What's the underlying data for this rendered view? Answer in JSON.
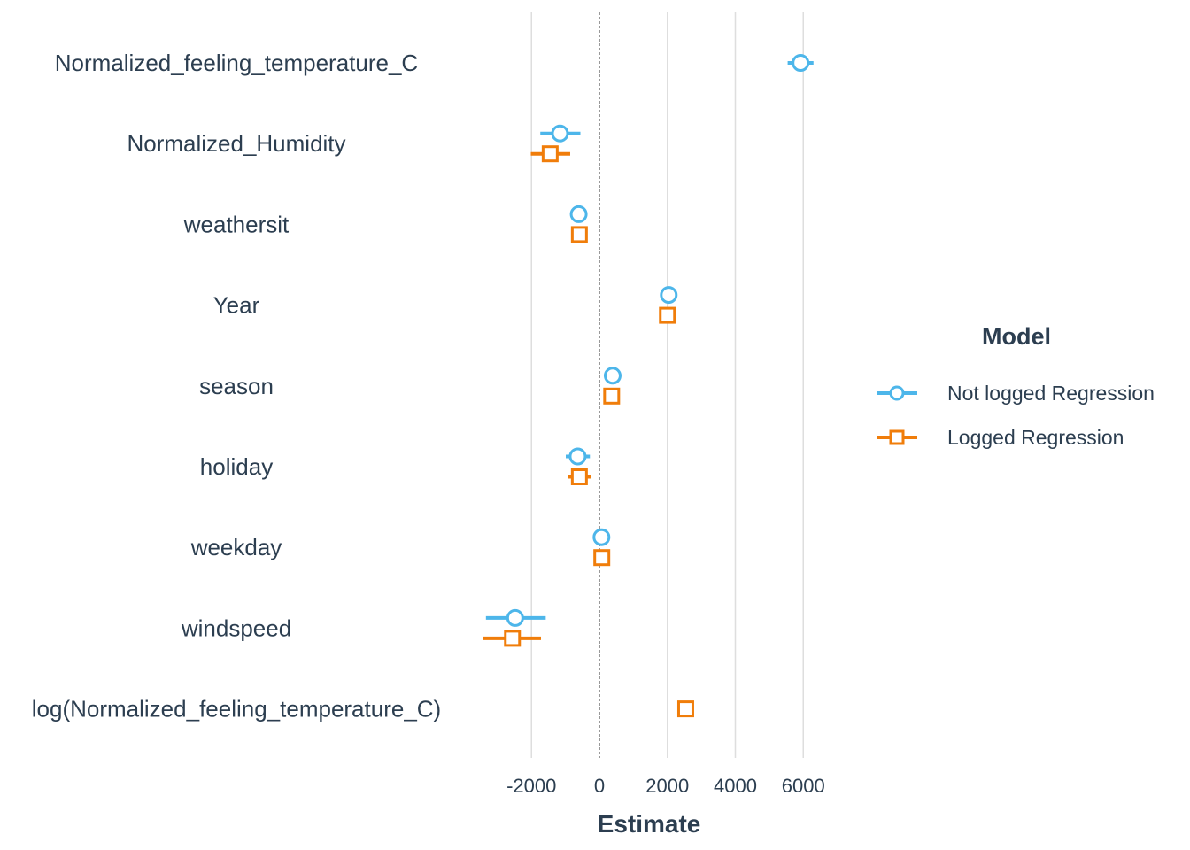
{
  "chart_data": {
    "type": "scatter",
    "subtype": "coefficient-dot-whisker",
    "xlabel": "Estimate",
    "x_ticks": [
      -2000,
      0,
      2000,
      4000,
      6000
    ],
    "x_tick_labels": [
      "-2000",
      "0",
      "2000",
      "4000",
      "6000"
    ],
    "xlim": [
      -3500,
      6800
    ],
    "grid": "vertical major gridlines",
    "reference_line": 0,
    "terms": [
      "Normalized_feeling_temperature_C",
      "Normalized_Humidity",
      "weathersit",
      "Year",
      "season",
      "holiday",
      "weekday",
      "windspeed",
      "log(Normalized_feeling_temperature_C)"
    ],
    "legend": {
      "title": "Model",
      "position": "right"
    },
    "series": [
      {
        "name": "Not logged Regression",
        "color": "#4db6ea",
        "marker": "circle",
        "points": [
          {
            "term": "Normalized_feeling_temperature_C",
            "estimate": 5920,
            "low": 5540,
            "high": 6300
          },
          {
            "term": "Normalized_Humidity",
            "estimate": -1160,
            "low": -1740,
            "high": -560
          },
          {
            "term": "weathersit",
            "estimate": -610,
            "low": -680,
            "high": -540
          },
          {
            "term": "Year",
            "estimate": 2040,
            "low": 1990,
            "high": 2090
          },
          {
            "term": "season",
            "estimate": 390,
            "low": 330,
            "high": 450
          },
          {
            "term": "holiday",
            "estimate": -640,
            "low": -990,
            "high": -280
          },
          {
            "term": "weekday",
            "estimate": 60,
            "low": 0,
            "high": 120
          },
          {
            "term": "windspeed",
            "estimate": -2480,
            "low": -3340,
            "high": -1580
          }
        ]
      },
      {
        "name": "Logged Regression",
        "color": "#f07d0a",
        "marker": "square",
        "points": [
          {
            "term": "Normalized_Humidity",
            "estimate": -1450,
            "low": -2020,
            "high": -860
          },
          {
            "term": "weathersit",
            "estimate": -590,
            "low": -660,
            "high": -520
          },
          {
            "term": "Year",
            "estimate": 2000,
            "low": 1950,
            "high": 2050
          },
          {
            "term": "season",
            "estimate": 360,
            "low": 300,
            "high": 420
          },
          {
            "term": "holiday",
            "estimate": -590,
            "low": -930,
            "high": -250
          },
          {
            "term": "weekday",
            "estimate": 70,
            "low": 10,
            "high": 130
          },
          {
            "term": "windspeed",
            "estimate": -2560,
            "low": -3420,
            "high": -1720
          },
          {
            "term": "log(Normalized_feeling_temperature_C)",
            "estimate": 2540,
            "low": 2470,
            "high": 2610
          }
        ]
      }
    ]
  }
}
